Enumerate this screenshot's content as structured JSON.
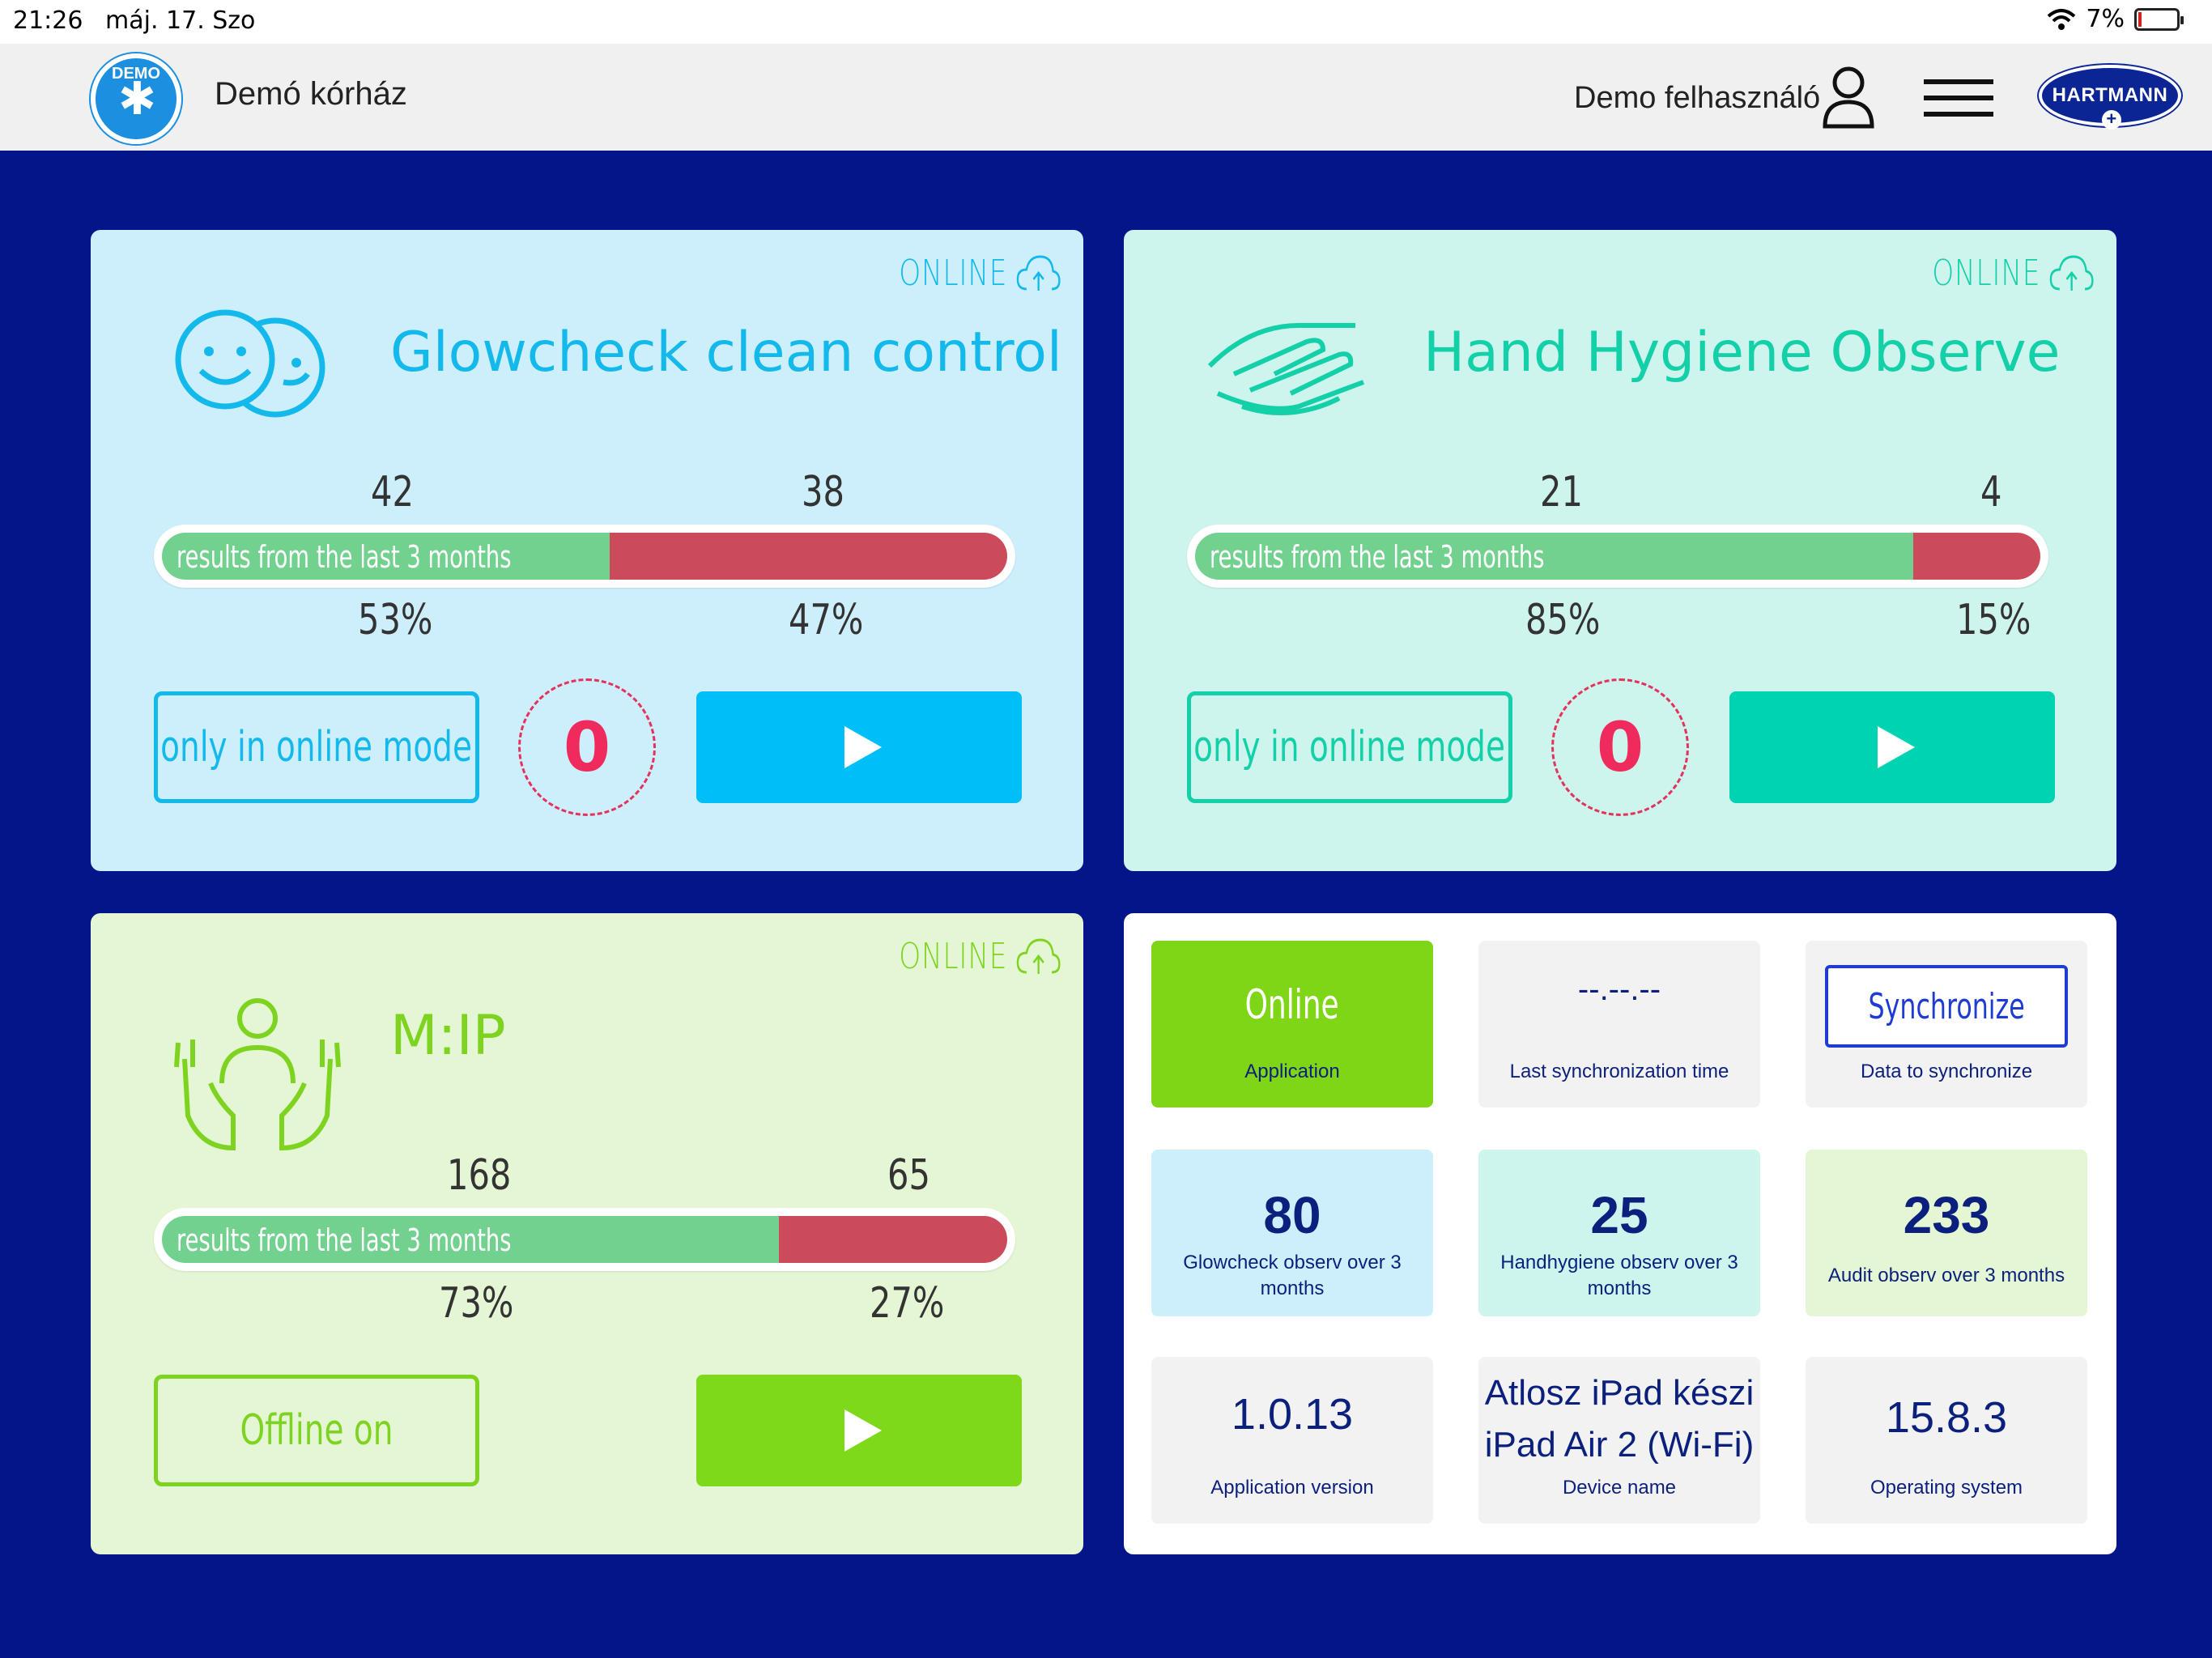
{
  "statusbar": {
    "time": "21:26",
    "date": "máj. 17. Szo",
    "battery": "7%"
  },
  "header": {
    "hospital_name": "Demó kórház",
    "logo_text": "DEMO",
    "username": "Demo felhasználó",
    "brand": "HARTMANN"
  },
  "cards": {
    "glowcheck": {
      "status": "ONLINE",
      "title": "Glowcheck clean control",
      "good_count": "42",
      "bad_count": "38",
      "good_pct": "53%",
      "bad_pct": "47%",
      "good_fraction": 0.53,
      "bar_label": "results from the last 3 months",
      "mode_label": "only in online mode",
      "pending": "0"
    },
    "handhygiene": {
      "status": "ONLINE",
      "title": "Hand Hygiene Observe",
      "good_count": "21",
      "bad_count": "4",
      "good_pct": "85%",
      "bad_pct": "15%",
      "good_fraction": 0.85,
      "bar_label": "results from the last 3 months",
      "mode_label": "only in online mode",
      "pending": "0"
    },
    "mip": {
      "status": "ONLINE",
      "title": "M:IP",
      "good_count": "168",
      "bad_count": "65",
      "good_pct": "73%",
      "bad_pct": "27%",
      "good_fraction": 0.73,
      "bar_label": "results from the last 3 months",
      "mode_label": "Offline on"
    }
  },
  "info": {
    "application": {
      "value": "Online",
      "label": "Application"
    },
    "last_sync": {
      "value": "--.--.--",
      "label": "Last synchronization time"
    },
    "sync": {
      "button": "Synchronize",
      "label": "Data to synchronize"
    },
    "glowcheck_obs": {
      "value": "80",
      "label": "Glowcheck observ over 3 months"
    },
    "handhygiene_obs": {
      "value": "25",
      "label": "Handhygiene observ over 3 months"
    },
    "audit_obs": {
      "value": "233",
      "label": "Audit observ over 3 months"
    },
    "app_version": {
      "value": "1.0.13",
      "label": "Application version"
    },
    "device": {
      "value_line1": "Atlosz iPad készi",
      "value_line2": "iPad Air 2 (Wi-Fi)",
      "label": "Device name"
    },
    "os": {
      "value": "15.8.3",
      "label": "Operating system"
    }
  },
  "colors": {
    "background": "#031589",
    "glow_accent": "#13b9ea",
    "hand_accent": "#14d0a8",
    "mip_accent": "#7ed321",
    "bar_good": "#72d18f",
    "bar_bad": "#cc4b5a",
    "pending_red": "#ef2a5c"
  },
  "icons": [
    "wifi-icon",
    "battery-icon",
    "user-icon",
    "menu-icon",
    "cloud-upload-icon",
    "smiley-faces-icon",
    "handshake-icon",
    "person-in-hands-icon",
    "play-icon"
  ]
}
